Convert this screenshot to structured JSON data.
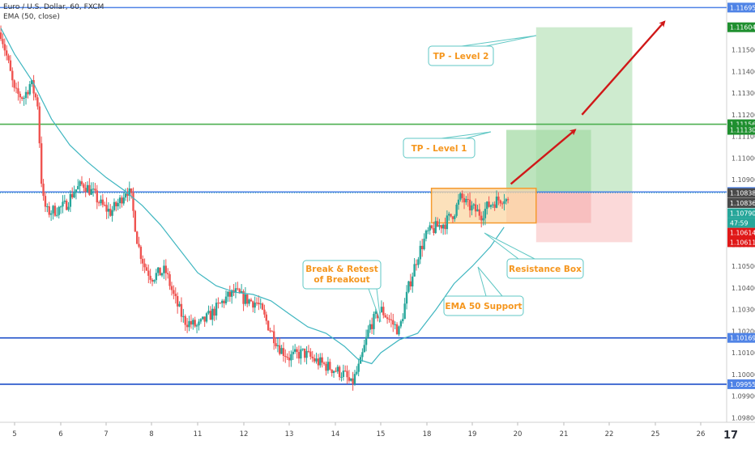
{
  "legend": {
    "symbol": "Euro / U.S. Dollar, 60, FXCM",
    "indicator": "EMA (50, close)"
  },
  "colors": {
    "blue_level": "#1e4fc9",
    "light_blue_level": "#4f83e6",
    "green_level": "#4caf50",
    "ema": "#3fb6c0",
    "up": "#26a69a",
    "down": "#ef5350",
    "box_fill": "#fbd7a4",
    "box_border": "#f59b2e",
    "target_fill": "#a6dba7",
    "stop_fill": "#f7b4b4",
    "arrow": "#d01818",
    "callout_border": "#5fc7c4",
    "callout_text": "#f5961e",
    "tag_green": "#1f8f2f",
    "tag_red": "#e01818",
    "tag_dark": "#4a4a4a"
  },
  "chart_data": {
    "type": "candlestick",
    "ylim": [
      1.09779,
      1.1173
    ],
    "y_ticks": [
      "1.11500",
      "1.11400",
      "1.11300",
      "1.11200",
      "1.11100",
      "1.11000",
      "1.10900",
      "1.10700",
      "1.10600",
      "1.10500",
      "1.10400",
      "1.10300",
      "1.10200",
      "1.10100",
      "1.10000",
      "1.09900",
      "1.09800"
    ],
    "x_ticks": [
      {
        "label": "5",
        "day": 5
      },
      {
        "label": "6",
        "day": 6
      },
      {
        "label": "7",
        "day": 7
      },
      {
        "label": "8",
        "day": 8
      },
      {
        "label": "11",
        "day": 9
      },
      {
        "label": "12",
        "day": 10
      },
      {
        "label": "13",
        "day": 11
      },
      {
        "label": "14",
        "day": 12
      },
      {
        "label": "15",
        "day": 13
      },
      {
        "label": "18",
        "day": 14
      },
      {
        "label": "19",
        "day": 15
      },
      {
        "label": "20",
        "day": 16
      },
      {
        "label": "21",
        "day": 17
      },
      {
        "label": "22",
        "day": 18
      },
      {
        "label": "25",
        "day": 19
      },
      {
        "label": "26",
        "day": 20
      }
    ],
    "price_tags": [
      {
        "label": "1.11695",
        "value": 1.11695,
        "style": "blue"
      },
      {
        "label": "1.11604",
        "value": 1.11604,
        "style": "green"
      },
      {
        "label": "1.11156",
        "value": 1.11156,
        "style": "green"
      },
      {
        "label": "1.11130",
        "value": 1.1113,
        "style": "green"
      },
      {
        "label": "1.10843",
        "value": 1.10843,
        "style": "blue"
      },
      {
        "label": "1.10838",
        "value": 1.10838,
        "style": "dark"
      },
      {
        "label": "1.10836",
        "value": 1.10792,
        "style": "dark"
      },
      {
        "label": "1.10790",
        "value": 1.10745,
        "style": "teal"
      },
      {
        "label": "47:59",
        "value": 1.107,
        "style": "teal"
      },
      {
        "label": "1.10614",
        "value": 1.10655,
        "style": "red"
      },
      {
        "label": "1.10611",
        "value": 1.10611,
        "style": "red"
      },
      {
        "label": "1.10169",
        "value": 1.10169,
        "style": "blue"
      },
      {
        "label": "1.09955",
        "value": 1.09955,
        "style": "blue"
      }
    ],
    "horizontal_levels": [
      {
        "value": 1.11695,
        "color": "light_blue"
      },
      {
        "value": 1.11156,
        "color": "green"
      },
      {
        "value": 1.10843,
        "color": "light_blue"
      },
      {
        "value": 1.10169,
        "color": "blue"
      },
      {
        "value": 1.09955,
        "color": "blue"
      }
    ],
    "ema_points": [
      [
        4.7,
        1.116
      ],
      [
        5.0,
        1.1148
      ],
      [
        5.4,
        1.1135
      ],
      [
        5.8,
        1.1118
      ],
      [
        6.2,
        1.1106
      ],
      [
        6.6,
        1.1098
      ],
      [
        7.0,
        1.1091
      ],
      [
        7.4,
        1.1085
      ],
      [
        7.8,
        1.1078
      ],
      [
        8.2,
        1.1069
      ],
      [
        8.6,
        1.1058
      ],
      [
        9.0,
        1.1047
      ],
      [
        9.4,
        1.1041
      ],
      [
        9.8,
        1.1038
      ],
      [
        10.2,
        1.1037
      ],
      [
        10.6,
        1.1034
      ],
      [
        11.0,
        1.1028
      ],
      [
        11.4,
        1.1022
      ],
      [
        11.8,
        1.1019
      ],
      [
        12.2,
        1.1013
      ],
      [
        12.5,
        1.1007
      ],
      [
        12.8,
        1.1005
      ],
      [
        13.0,
        1.101
      ],
      [
        13.4,
        1.1016
      ],
      [
        13.8,
        1.1019
      ],
      [
        14.2,
        1.103
      ],
      [
        14.6,
        1.1042
      ],
      [
        15.0,
        1.105
      ],
      [
        15.4,
        1.1059
      ],
      [
        15.7,
        1.1068
      ]
    ],
    "resistance_box": {
      "x0": 14.1,
      "x1": 16.4,
      "y0": 1.107,
      "y1": 1.1086
    },
    "target_box_1": {
      "x0": 15.75,
      "x1": 17.6,
      "y0": 1.10843,
      "y1": 1.1113
    },
    "stop_box_1": {
      "x0": 15.75,
      "x1": 17.6,
      "y0": 1.107,
      "y1": 1.10843
    },
    "target_box_2": {
      "x0": 16.4,
      "x1": 18.5,
      "y0": 1.10843,
      "y1": 1.11604
    },
    "stop_box_2": {
      "x0": 16.4,
      "x1": 18.5,
      "y0": 1.10611,
      "y1": 1.10843
    },
    "arrow_1": {
      "x0": 15.85,
      "y0": 1.1088,
      "x1": 17.25,
      "y1": 1.1113
    },
    "arrow_2": {
      "x0": 17.4,
      "y0": 1.112,
      "x1": 19.2,
      "y1": 1.1163
    }
  },
  "annotations": {
    "tp2": "TP - Level 2",
    "tp1": "TP - Level 1",
    "break_retest": [
      "Break & Retest",
      "of Breakout"
    ],
    "resistance_box": "Resistance Box",
    "ema_support": "EMA 50 Support"
  },
  "branding": {
    "logo": "17"
  }
}
